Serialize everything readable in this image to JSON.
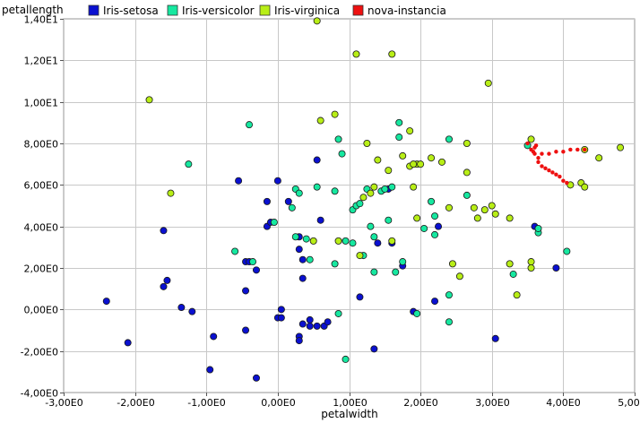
{
  "chart_data": {
    "type": "scatter",
    "xlabel": "petalwidth",
    "ylabel": "petallength",
    "xlim": [
      -3,
      5
    ],
    "ylim": [
      -4,
      14
    ],
    "x_ticks": [
      {
        "v": -3,
        "label": "-3,00E0"
      },
      {
        "v": -2,
        "label": "-2,00E0"
      },
      {
        "v": -1,
        "label": "-1,00E0"
      },
      {
        "v": 0,
        "label": "0,00E0"
      },
      {
        "v": 1,
        "label": "1,00E0"
      },
      {
        "v": 2,
        "label": "2,00E0"
      },
      {
        "v": 3,
        "label": "3,00E0"
      },
      {
        "v": 4,
        "label": "4,00E0"
      },
      {
        "v": 5,
        "label": "5,00E0"
      }
    ],
    "y_ticks": [
      {
        "v": -4,
        "label": "-4,00E0"
      },
      {
        "v": -2,
        "label": "-2,00E0"
      },
      {
        "v": 0,
        "label": "0,00E0"
      },
      {
        "v": 2,
        "label": "2,00E0"
      },
      {
        "v": 4,
        "label": "4,00E0"
      },
      {
        "v": 6,
        "label": "6,00E0"
      },
      {
        "v": 8,
        "label": "8,00E0"
      },
      {
        "v": 10,
        "label": "1,00E1"
      },
      {
        "v": 12,
        "label": "1,20E1"
      },
      {
        "v": 14,
        "label": "1,40E1"
      }
    ],
    "grid": true,
    "legend_position": "top",
    "series": [
      {
        "name": "Iris-setosa",
        "color": "#0a10d0",
        "points": [
          [
            -2.4,
            0.4
          ],
          [
            -2.1,
            -1.6
          ],
          [
            -1.6,
            3.8
          ],
          [
            -1.55,
            1.4
          ],
          [
            -1.6,
            1.1
          ],
          [
            -1.35,
            0.1
          ],
          [
            -1.2,
            -0.1
          ],
          [
            -0.9,
            -1.3
          ],
          [
            -0.95,
            -2.9
          ],
          [
            -0.55,
            6.2
          ],
          [
            -0.45,
            2.3
          ],
          [
            -0.45,
            0.9
          ],
          [
            -0.45,
            -1.0
          ],
          [
            -0.4,
            2.3
          ],
          [
            -0.3,
            1.9
          ],
          [
            -0.3,
            -3.3
          ],
          [
            -0.15,
            5.2
          ],
          [
            -0.15,
            4.0
          ],
          [
            -0.1,
            4.2
          ],
          [
            0.0,
            6.2
          ],
          [
            0.0,
            -0.4
          ],
          [
            0.05,
            0.0
          ],
          [
            0.05,
            -0.4
          ],
          [
            0.15,
            5.2
          ],
          [
            0.3,
            3.5
          ],
          [
            0.3,
            2.9
          ],
          [
            0.3,
            -1.3
          ],
          [
            0.3,
            -1.5
          ],
          [
            0.35,
            1.5
          ],
          [
            0.35,
            2.4
          ],
          [
            0.35,
            -0.7
          ],
          [
            0.45,
            -0.5
          ],
          [
            0.45,
            -0.8
          ],
          [
            0.55,
            -0.8
          ],
          [
            0.55,
            7.2
          ],
          [
            0.6,
            4.3
          ],
          [
            0.65,
            -0.8
          ],
          [
            0.7,
            -0.6
          ],
          [
            1.15,
            0.6
          ],
          [
            1.35,
            -1.9
          ],
          [
            1.4,
            3.2
          ],
          [
            1.55,
            5.8
          ],
          [
            1.6,
            3.2
          ],
          [
            1.75,
            2.1
          ],
          [
            1.9,
            -0.1
          ],
          [
            2.2,
            0.4
          ],
          [
            2.25,
            4.0
          ],
          [
            3.05,
            -1.4
          ],
          [
            3.6,
            4.0
          ],
          [
            3.9,
            2.0
          ]
        ]
      },
      {
        "name": "Iris-versicolor",
        "color": "#16e8a0",
        "points": [
          [
            -1.25,
            7.0
          ],
          [
            -0.6,
            2.8
          ],
          [
            -0.4,
            8.9
          ],
          [
            -0.35,
            2.3
          ],
          [
            -0.05,
            4.2
          ],
          [
            0.2,
            4.9
          ],
          [
            0.25,
            5.8
          ],
          [
            0.25,
            3.5
          ],
          [
            0.3,
            5.6
          ],
          [
            0.4,
            3.4
          ],
          [
            0.45,
            2.4
          ],
          [
            0.55,
            5.9
          ],
          [
            0.8,
            5.7
          ],
          [
            0.8,
            2.2
          ],
          [
            0.85,
            8.2
          ],
          [
            0.85,
            -0.2
          ],
          [
            0.9,
            7.5
          ],
          [
            0.95,
            3.3
          ],
          [
            0.95,
            -2.4
          ],
          [
            1.05,
            3.2
          ],
          [
            1.05,
            4.8
          ],
          [
            1.1,
            5.0
          ],
          [
            1.15,
            5.1
          ],
          [
            1.2,
            2.6
          ],
          [
            1.25,
            5.8
          ],
          [
            1.3,
            4.0
          ],
          [
            1.35,
            3.5
          ],
          [
            1.35,
            1.8
          ],
          [
            1.45,
            5.7
          ],
          [
            1.5,
            5.8
          ],
          [
            1.55,
            4.3
          ],
          [
            1.6,
            5.9
          ],
          [
            1.65,
            1.8
          ],
          [
            1.7,
            8.3
          ],
          [
            1.7,
            9.0
          ],
          [
            1.75,
            2.3
          ],
          [
            1.95,
            -0.2
          ],
          [
            2.05,
            3.9
          ],
          [
            2.15,
            5.2
          ],
          [
            2.2,
            3.6
          ],
          [
            2.2,
            4.5
          ],
          [
            2.4,
            8.2
          ],
          [
            2.4,
            0.7
          ],
          [
            2.4,
            -0.6
          ],
          [
            2.65,
            5.5
          ],
          [
            3.3,
            1.7
          ],
          [
            3.5,
            7.9
          ],
          [
            3.65,
            3.7
          ],
          [
            3.65,
            3.9
          ],
          [
            4.05,
            2.8
          ]
        ]
      },
      {
        "name": "Iris-virginica",
        "color": "#b8ee16",
        "points": [
          [
            -1.8,
            10.1
          ],
          [
            -1.5,
            5.6
          ],
          [
            0.55,
            13.9
          ],
          [
            0.6,
            9.1
          ],
          [
            0.8,
            9.4
          ],
          [
            1.1,
            12.3
          ],
          [
            1.2,
            5.4
          ],
          [
            1.25,
            8.0
          ],
          [
            1.3,
            5.6
          ],
          [
            1.4,
            7.2
          ],
          [
            1.6,
            12.3
          ],
          [
            1.6,
            3.3
          ],
          [
            1.75,
            7.4
          ],
          [
            1.85,
            8.6
          ],
          [
            1.85,
            6.9
          ],
          [
            1.9,
            5.9
          ],
          [
            1.95,
            7.0
          ],
          [
            1.95,
            4.4
          ],
          [
            2.0,
            7.0
          ],
          [
            2.15,
            7.3
          ],
          [
            2.3,
            7.1
          ],
          [
            2.45,
            2.2
          ],
          [
            2.55,
            1.6
          ],
          [
            2.65,
            8.0
          ],
          [
            2.65,
            6.6
          ],
          [
            2.75,
            4.9
          ],
          [
            2.8,
            4.4
          ],
          [
            2.9,
            4.8
          ],
          [
            2.95,
            10.9
          ],
          [
            3.0,
            5.0
          ],
          [
            3.05,
            4.6
          ],
          [
            3.25,
            4.4
          ],
          [
            3.25,
            2.2
          ],
          [
            3.35,
            0.7
          ],
          [
            3.55,
            2.0
          ],
          [
            3.55,
            2.3
          ],
          [
            3.55,
            8.2
          ],
          [
            4.1,
            6.0
          ],
          [
            4.25,
            6.1
          ],
          [
            4.3,
            7.7
          ],
          [
            4.3,
            5.9
          ],
          [
            4.5,
            7.3
          ],
          [
            4.8,
            7.8
          ],
          [
            1.15,
            2.6
          ],
          [
            0.85,
            3.3
          ],
          [
            2.4,
            4.9
          ],
          [
            1.9,
            7.0
          ],
          [
            1.35,
            5.9
          ],
          [
            1.55,
            6.7
          ],
          [
            0.5,
            3.3
          ]
        ]
      },
      {
        "name": "nova-instancia",
        "color": "#ee1010",
        "points": [
          [
            3.5,
            8.0
          ],
          [
            3.55,
            7.7
          ],
          [
            3.6,
            7.5
          ],
          [
            3.65,
            7.3
          ],
          [
            3.7,
            7.5
          ],
          [
            3.8,
            7.5
          ],
          [
            3.9,
            7.6
          ],
          [
            4.0,
            7.6
          ],
          [
            4.1,
            7.7
          ],
          [
            4.2,
            7.7
          ],
          [
            4.3,
            7.7
          ],
          [
            3.6,
            7.8
          ],
          [
            3.65,
            7.1
          ],
          [
            3.7,
            6.9
          ],
          [
            3.75,
            6.8
          ],
          [
            3.8,
            6.7
          ],
          [
            3.85,
            6.6
          ],
          [
            3.9,
            6.5
          ],
          [
            3.95,
            6.4
          ],
          [
            4.0,
            6.2
          ],
          [
            4.05,
            6.1
          ],
          [
            3.62,
            7.9
          ],
          [
            3.58,
            7.6
          ]
        ],
        "marker": "small"
      }
    ]
  }
}
